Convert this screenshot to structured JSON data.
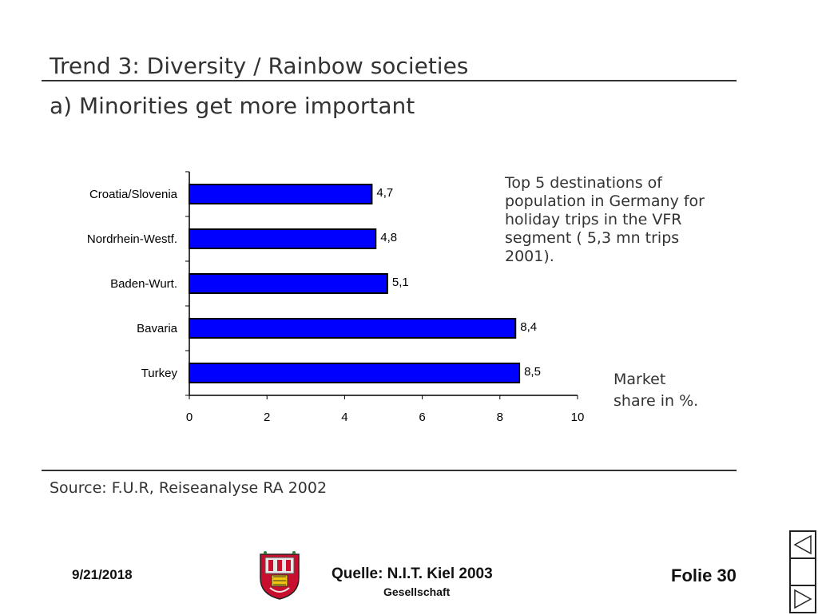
{
  "slide": {
    "title": "Trend 3: Diversity / Rainbow societies",
    "subtitle": "a) Minorities get more important",
    "description_lines": [
      "Top 5 destinations of",
      "population in Germany for",
      "holiday trips in the VFR",
      "segment ( 5,3 mn trips",
      "2001)."
    ],
    "unit_lines": [
      "Market",
      "share in %."
    ],
    "source": "Source: F.U.R, Reiseanalyse RA 2002"
  },
  "footer": {
    "date": "9/21/2018",
    "quelle": "Quelle: N.I.T. Kiel 2003",
    "gesellschaft": "Gesellschaft",
    "folie": "Folie 30"
  },
  "nav": {
    "icons": [
      "prev-triangle-icon",
      "next-triangle-icon"
    ]
  },
  "colors": {
    "bar": "#0000ff",
    "bar_border": "#000000",
    "text": "#333333"
  },
  "chart_data": {
    "type": "bar",
    "orientation": "horizontal",
    "categories": [
      "Croatia/Slovenia",
      "Nordrhein-Westf.",
      "Baden-Wurt.",
      "Bavaria",
      "Turkey"
    ],
    "values": [
      4.7,
      4.8,
      5.1,
      8.4,
      8.5
    ],
    "value_labels": [
      "4,7",
      "4,8",
      "5,1",
      "8,4",
      "8,5"
    ],
    "xlim": [
      0,
      10
    ],
    "xticks": [
      0,
      2,
      4,
      6,
      8,
      10
    ],
    "grid": false,
    "legend": "none"
  }
}
